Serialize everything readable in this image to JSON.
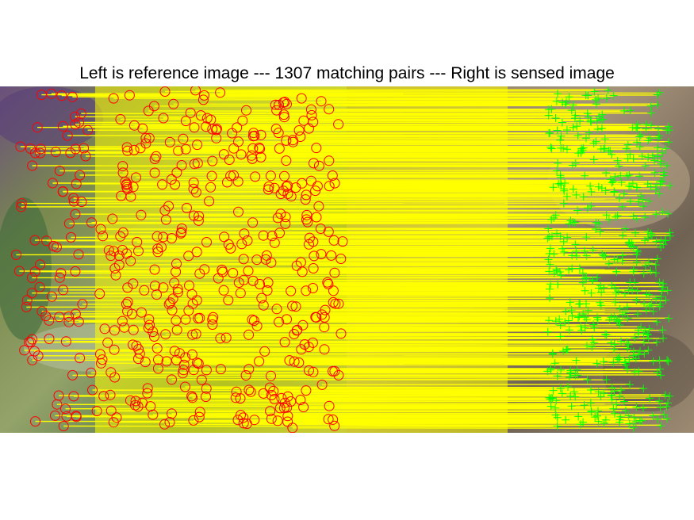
{
  "figure": {
    "title": "Left is reference image --- 1307 matching pairs --- Right is sensed image"
  },
  "legend_markers": {
    "reference_keypoint": {
      "marker": "circle-icon",
      "color": "#ff0000"
    },
    "sensed_keypoint": {
      "marker": "plus-icon",
      "color": "#00ff00"
    },
    "match_line": {
      "color": "#ffff00"
    }
  },
  "matching_pairs": 1307,
  "colors": {
    "background": "#ffffff",
    "title_text": "#000000"
  }
}
